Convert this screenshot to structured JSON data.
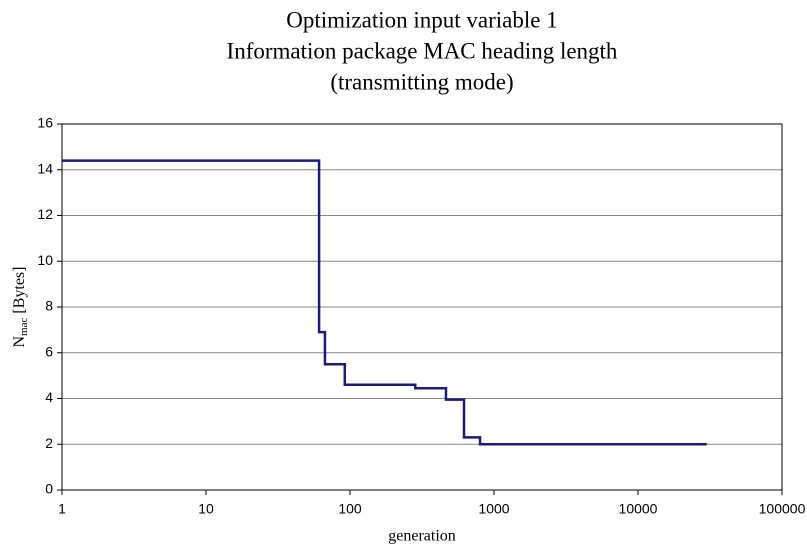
{
  "chart_data": {
    "type": "line",
    "title": [
      "Optimization input variable 1",
      "Information package MAC heading length",
      "(transmitting mode)"
    ],
    "xlabel": "generation",
    "ylabel": {
      "main": "N",
      "sub": "mac",
      "rest": " [Bytes]"
    },
    "x": [
      1,
      61,
      61,
      67,
      67,
      92,
      92,
      284,
      284,
      464,
      464,
      619,
      619,
      800,
      800,
      30000
    ],
    "series": [
      {
        "name": "Nmac",
        "color": "#1a1a80",
        "values": [
          14.4,
          14.4,
          6.9,
          6.9,
          5.5,
          5.5,
          4.6,
          4.6,
          4.45,
          4.45,
          3.95,
          3.95,
          2.3,
          2.3,
          2,
          2
        ]
      }
    ],
    "xscale": "log",
    "xlim": [
      1,
      100000
    ],
    "xticks": [
      1,
      10,
      100,
      1000,
      10000,
      100000
    ],
    "ylim": [
      0,
      16
    ],
    "yticks": [
      0,
      2,
      4,
      6,
      8,
      10,
      12,
      14,
      16
    ],
    "grid": true
  }
}
